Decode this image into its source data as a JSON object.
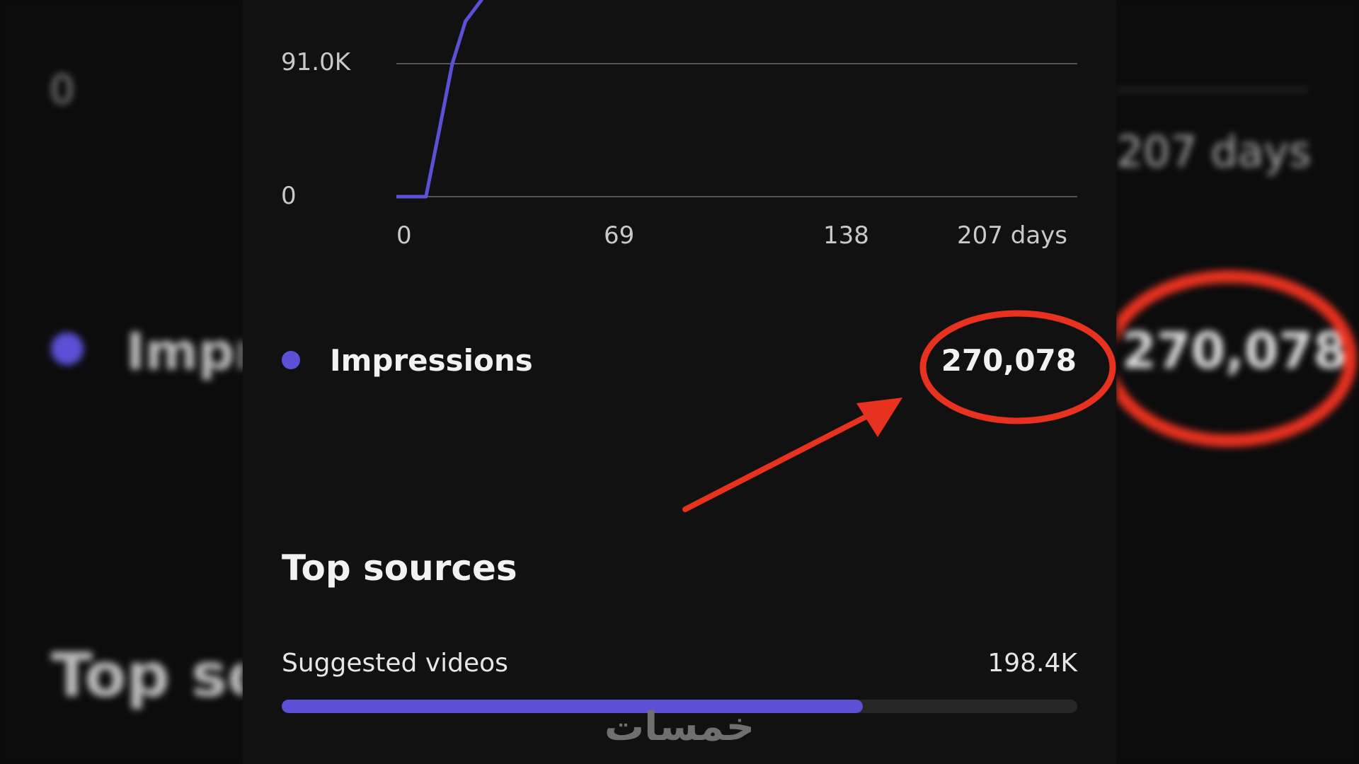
{
  "colors": {
    "accent": "#5b50d6",
    "annotation": "#e8311f",
    "track": "#262627"
  },
  "chart_data": {
    "type": "line",
    "series": [
      {
        "name": "Impressions",
        "x": [
          0,
          7,
          9,
          13,
          17,
          21,
          26
        ],
        "y": [
          0,
          0,
          0,
          45000,
          91000,
          120000,
          135000
        ]
      }
    ],
    "xlim": [
      0,
      207
    ],
    "ylim": [
      0,
      130000
    ],
    "x_ticks": [
      "0",
      "69",
      "138",
      "207 days"
    ],
    "y_ticks": [
      "0",
      "91.0K"
    ],
    "grid": true
  },
  "legend": {
    "label": "Impressions",
    "value": "270,078"
  },
  "top_sources": {
    "title": "Top sources",
    "items": [
      {
        "label": "Suggested videos",
        "value": "198.4K",
        "fraction": 0.73
      }
    ]
  },
  "watermark": "خمسات"
}
